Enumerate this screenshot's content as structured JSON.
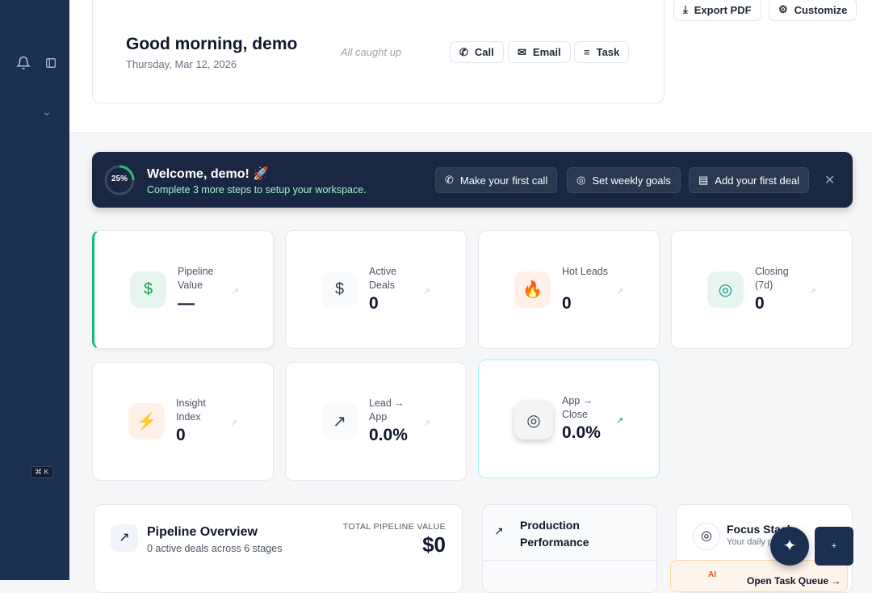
{
  "sidebar": {
    "shortcut": "⌘ K"
  },
  "header": {
    "top_actions": [
      "Export PDF",
      "Customize"
    ],
    "greeting": "Good morning, demo",
    "date": "Thursday, Mar 12, 2026",
    "status": "All caught up",
    "quick_actions": [
      "Call",
      "Email",
      "Task"
    ]
  },
  "welcome": {
    "progress": "25%",
    "title": "Welcome, demo! 🚀",
    "subtitle": "Complete 3 more steps to setup your workspace.",
    "actions": [
      "Make your first call",
      "Set weekly goals",
      "Add your first deal"
    ]
  },
  "stats": [
    {
      "label": "Pipeline Value",
      "value": "—"
    },
    {
      "label": "Active Deals",
      "value": "0"
    },
    {
      "label": "Hot Leads",
      "value": "0"
    },
    {
      "label": "Closing (7d)",
      "value": "0"
    },
    {
      "label": "Insight Index",
      "value": "0"
    },
    {
      "label": "Lead → App",
      "value": "0.0%"
    },
    {
      "label": "App → Close",
      "value": "0.0%"
    }
  ],
  "pipeline": {
    "title": "Pipeline Overview",
    "subtitle": "0 active deals across 6 stages",
    "total_label": "TOTAL PIPELINE VALUE",
    "total": "$0"
  },
  "production": {
    "title": "Production Performance"
  },
  "focus": {
    "title": "Focus Stack",
    "subtitle": "Your daily p",
    "badge": "AI",
    "link": "Open Task Queue →"
  },
  "fab": {
    "add": "+"
  }
}
